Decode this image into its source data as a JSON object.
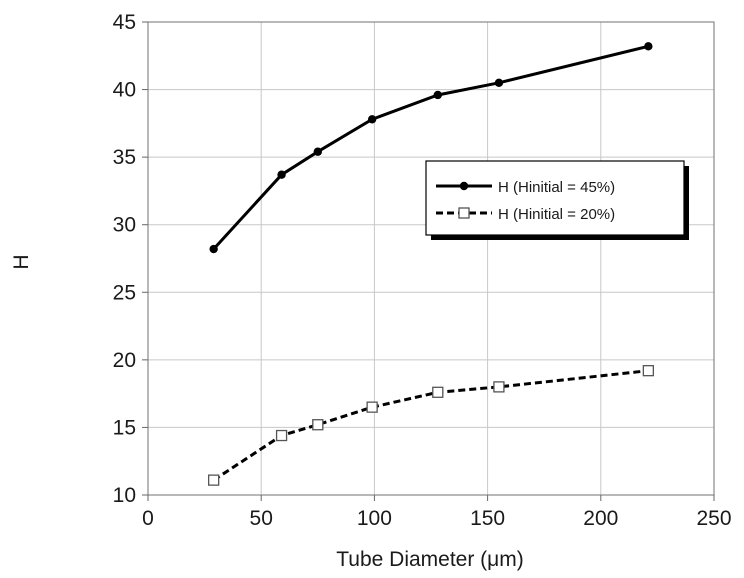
{
  "chart_data": {
    "type": "line",
    "title": "",
    "xlabel": "Tube Diameter (μm)",
    "ylabel": "H",
    "xlim": [
      0,
      250
    ],
    "ylim": [
      10,
      45
    ],
    "x_ticks": [
      0,
      50,
      100,
      150,
      200,
      250
    ],
    "y_ticks": [
      10,
      15,
      20,
      25,
      30,
      35,
      40,
      45
    ],
    "grid": true,
    "legend_position": "right",
    "series": [
      {
        "name": "H (Hinitial = 45%)",
        "line_style": "solid",
        "marker": "filled-circle",
        "color": "#000000",
        "x": [
          29,
          59,
          75,
          99,
          128,
          155,
          221
        ],
        "y": [
          28.2,
          33.7,
          35.4,
          37.8,
          39.6,
          40.5,
          43.2
        ]
      },
      {
        "name": "H (Hinitial = 20%)",
        "line_style": "dashed",
        "marker": "open-square",
        "color": "#000000",
        "x": [
          29,
          59,
          75,
          99,
          128,
          155,
          221
        ],
        "y": [
          11.1,
          14.4,
          15.2,
          16.5,
          17.6,
          18.0,
          19.2
        ]
      }
    ]
  }
}
